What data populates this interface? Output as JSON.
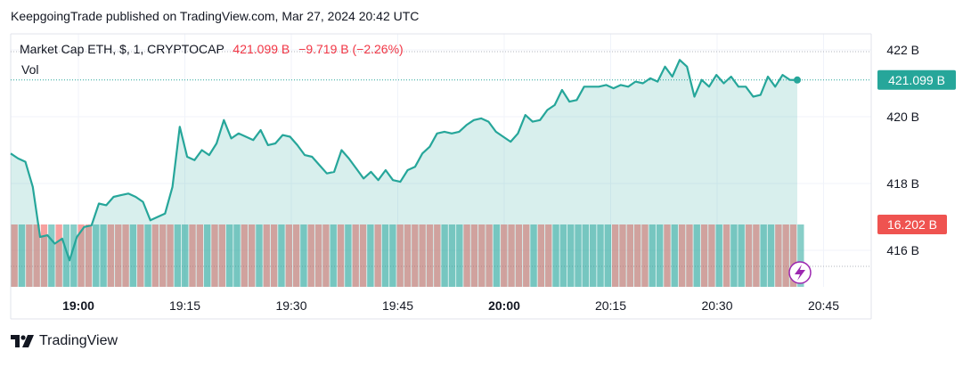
{
  "header": {
    "publisher_line": "KeepgoingTrade published on TradingView.com, Mar 27, 2024 20:42 UTC"
  },
  "legend": {
    "symbol": "Market Cap ETH, $, 1, CRYPTOCAP",
    "price": "421.099 B",
    "change": "−9.719 B (−2.26%)",
    "volume_label": "Vol"
  },
  "price_tag": {
    "label": "421.099 B",
    "value": 421.099,
    "color": "#26a69a"
  },
  "volume_tag": {
    "label": "16.202 B",
    "color": "#ef5350"
  },
  "brand": {
    "name": "TradingView"
  },
  "icons": {
    "logo": "tradingview-logo-icon",
    "lightning": "lightning-icon"
  },
  "colors": {
    "line": "#26a69a",
    "area": "#26a69a",
    "vol_up": "#26a69a",
    "vol_down": "#ef5350",
    "grid": "#f0f3fa",
    "lightning": "#9c27b0"
  },
  "chart_data": {
    "type": "area",
    "title": "Market Cap ETH, $, 1, CRYPTOCAP",
    "xlabel": "",
    "ylabel": "",
    "x_ticks": [
      {
        "label": "19:00",
        "bold": true,
        "min": 0
      },
      {
        "label": "19:15",
        "bold": false,
        "min": 15
      },
      {
        "label": "19:30",
        "bold": false,
        "min": 30
      },
      {
        "label": "19:45",
        "bold": false,
        "min": 45
      },
      {
        "label": "20:00",
        "bold": true,
        "min": 60
      },
      {
        "label": "20:15",
        "bold": false,
        "min": 75
      },
      {
        "label": "20:30",
        "bold": false,
        "min": 90
      },
      {
        "label": "20:45",
        "bold": false,
        "min": 105
      }
    ],
    "y_ticks": [
      {
        "label": "422 B",
        "value": 422
      },
      {
        "label": "420 B",
        "value": 420
      },
      {
        "label": "418 B",
        "value": 418
      },
      {
        "label": "416 B",
        "value": 416
      }
    ],
    "ylim": [
      415.6,
      422.6
    ],
    "xlim_minutes": [
      -9.7,
      116.6
    ],
    "series": [
      {
        "values": [
          418.9,
          418.75,
          418.65,
          417.9,
          416.4,
          416.45,
          416.2,
          416.35,
          415.7,
          416.4,
          416.7,
          416.75,
          417.4,
          417.35,
          417.6,
          417.65,
          417.7,
          417.6,
          417.45,
          416.9,
          417.0,
          417.1,
          417.9,
          419.7,
          418.8,
          418.7,
          419.0,
          418.85,
          419.2,
          419.9,
          419.35,
          419.5,
          419.4,
          419.3,
          419.6,
          419.15,
          419.2,
          419.45,
          419.4,
          419.15,
          418.85,
          418.8,
          418.55,
          418.3,
          418.35,
          419.0,
          418.75,
          418.45,
          418.15,
          418.35,
          418.1,
          418.4,
          418.1,
          418.05,
          418.4,
          418.5,
          418.9,
          419.1,
          419.5,
          419.55,
          419.5,
          419.55,
          419.75,
          419.9,
          419.95,
          419.85,
          419.55,
          419.4,
          419.25,
          419.5,
          420.05,
          419.85,
          419.9,
          420.2,
          420.35,
          420.8,
          420.45,
          420.5,
          420.9,
          420.9,
          420.9,
          420.95,
          420.85,
          420.95,
          420.9,
          421.05,
          421.0,
          421.15,
          421.05,
          421.5,
          421.2,
          421.7,
          421.5,
          420.6,
          421.1,
          420.9,
          421.25,
          421.0,
          421.2,
          420.9,
          420.9,
          420.6,
          420.65,
          421.2,
          420.9,
          421.25,
          421.1,
          421.099
        ]
      }
    ],
    "volume": {
      "values": [
        16.202
      ],
      "bar_count": 107,
      "colors_pattern": "mixed up/down"
    },
    "grid": true,
    "legend_position": "top-left"
  }
}
